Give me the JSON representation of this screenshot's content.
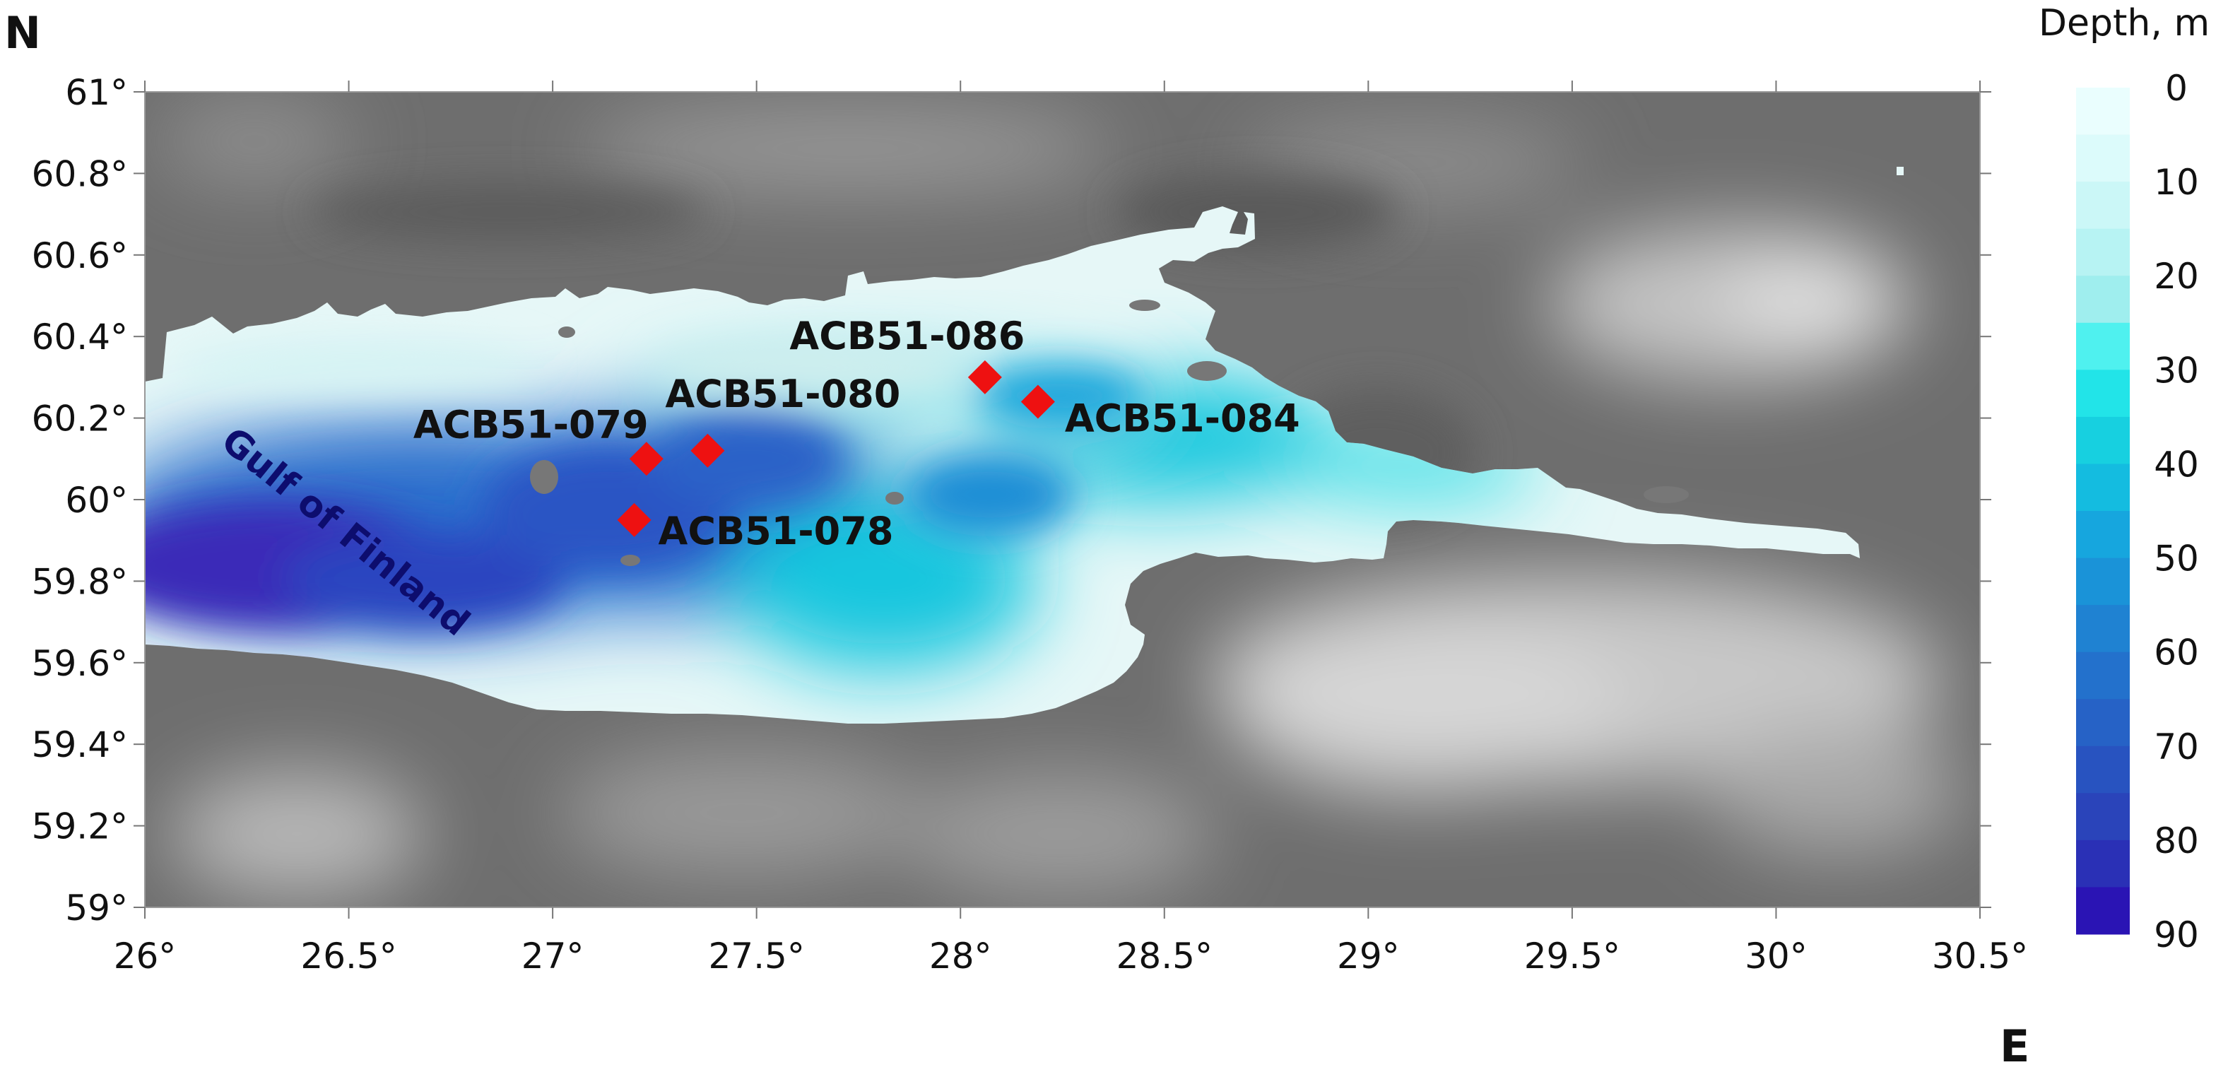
{
  "map": {
    "north_label": "N",
    "east_label": "E",
    "region_label": "Gulf of Finland",
    "lon_range": [
      26,
      30.5
    ],
    "lat_range": [
      59,
      61
    ],
    "lon_ticks": [
      {
        "value": 26,
        "label": "26°"
      },
      {
        "value": 26.5,
        "label": "26.5°"
      },
      {
        "value": 27,
        "label": "27°"
      },
      {
        "value": 27.5,
        "label": "27.5°"
      },
      {
        "value": 28,
        "label": "28°"
      },
      {
        "value": 28.5,
        "label": "28.5°"
      },
      {
        "value": 29,
        "label": "29°"
      },
      {
        "value": 29.5,
        "label": "29.5°"
      },
      {
        "value": 30,
        "label": "30°"
      },
      {
        "value": 30.5,
        "label": "30.5°"
      }
    ],
    "lat_ticks": [
      {
        "value": 61,
        "label": "61°"
      },
      {
        "value": 60.8,
        "label": "60.8°"
      },
      {
        "value": 60.6,
        "label": "60.6°"
      },
      {
        "value": 60.4,
        "label": "60.4°"
      },
      {
        "value": 60.2,
        "label": "60.2°"
      },
      {
        "value": 60,
        "label": "60°"
      },
      {
        "value": 59.8,
        "label": "59.8°"
      },
      {
        "value": 59.6,
        "label": "59.6°"
      },
      {
        "value": 59.4,
        "label": "59.4°"
      },
      {
        "value": 59.2,
        "label": "59.2°"
      },
      {
        "value": 59,
        "label": "59°"
      }
    ],
    "stations": [
      {
        "id": "ACB51-086",
        "lon": 28.06,
        "lat": 60.3
      },
      {
        "id": "ACB51-084",
        "lon": 28.19,
        "lat": 60.24
      },
      {
        "id": "ACB51-080",
        "lon": 27.38,
        "lat": 60.12
      },
      {
        "id": "ACB51-079",
        "lon": 27.23,
        "lat": 60.1
      },
      {
        "id": "ACB51-078",
        "lon": 27.2,
        "lat": 59.95
      }
    ],
    "station_color": "#ee1111",
    "land_color": "#6e6e6e",
    "land_light_color": "#bdbdbd",
    "region_label_color": "#0d0d6e"
  },
  "legend": {
    "title": "Depth, m",
    "range": [
      0,
      90
    ],
    "ticks": [
      {
        "value": 0,
        "label": "0"
      },
      {
        "value": 10,
        "label": "10"
      },
      {
        "value": 20,
        "label": "20"
      },
      {
        "value": 30,
        "label": "30"
      },
      {
        "value": 40,
        "label": "40"
      },
      {
        "value": 50,
        "label": "50"
      },
      {
        "value": 60,
        "label": "60"
      },
      {
        "value": 70,
        "label": "70"
      },
      {
        "value": 80,
        "label": "80"
      },
      {
        "value": 90,
        "label": "90"
      }
    ],
    "bands": [
      {
        "from": 0,
        "to": 5,
        "color": "#eafefe"
      },
      {
        "from": 5,
        "to": 10,
        "color": "#dcfbfb"
      },
      {
        "from": 10,
        "to": 15,
        "color": "#cbf7f7"
      },
      {
        "from": 15,
        "to": 20,
        "color": "#b7f3f3"
      },
      {
        "from": 20,
        "to": 25,
        "color": "#9feeee"
      },
      {
        "from": 25,
        "to": 30,
        "color": "#4ff1ef"
      },
      {
        "from": 30,
        "to": 35,
        "color": "#22e4e8"
      },
      {
        "from": 35,
        "to": 40,
        "color": "#17d0e0"
      },
      {
        "from": 40,
        "to": 45,
        "color": "#14bce0"
      },
      {
        "from": 45,
        "to": 50,
        "color": "#16a6de"
      },
      {
        "from": 50,
        "to": 55,
        "color": "#1a93d8"
      },
      {
        "from": 55,
        "to": 60,
        "color": "#1f82d2"
      },
      {
        "from": 60,
        "to": 65,
        "color": "#2371cc"
      },
      {
        "from": 65,
        "to": 70,
        "color": "#2662c6"
      },
      {
        "from": 70,
        "to": 75,
        "color": "#2853c0"
      },
      {
        "from": 75,
        "to": 80,
        "color": "#2a44ba"
      },
      {
        "from": 80,
        "to": 85,
        "color": "#2a30b6"
      },
      {
        "from": 85,
        "to": 90,
        "color": "#2a14b4"
      }
    ]
  }
}
